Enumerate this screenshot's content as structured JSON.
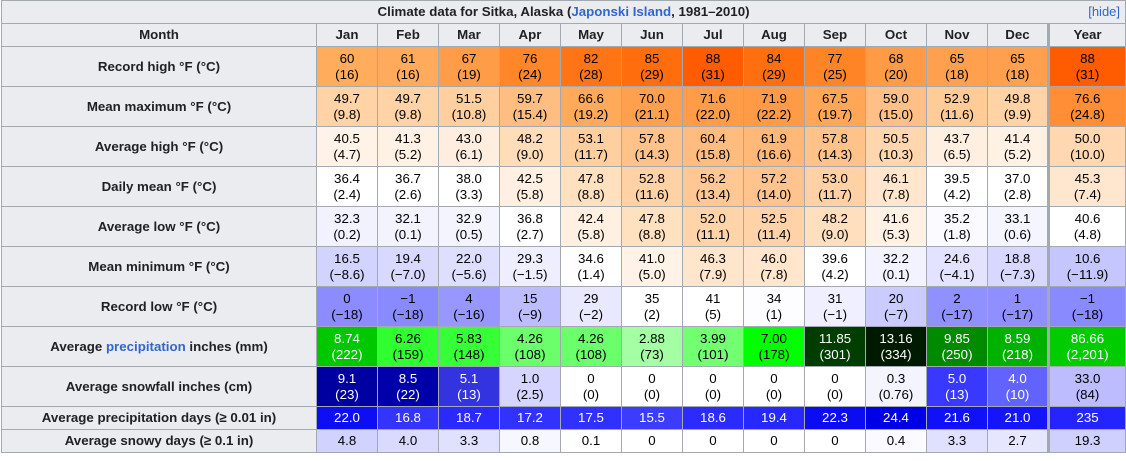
{
  "caption": {
    "prefix": "Climate data for Sitka, Alaska (",
    "link": "Japonski Island",
    "suffix": ", 1981–2010)",
    "hide_label": "[hide]"
  },
  "header": {
    "month_label": "Month",
    "months": [
      "Jan",
      "Feb",
      "Mar",
      "Apr",
      "May",
      "Jun",
      "Jul",
      "Aug",
      "Sep",
      "Oct",
      "Nov",
      "Dec",
      "Year"
    ]
  },
  "rows": [
    {
      "label": "Record high °F (°C)",
      "cells": [
        {
          "a": "60",
          "b": "(16)",
          "bg": "#ffac5c",
          "fg": "#000000"
        },
        {
          "a": "61",
          "b": "(16)",
          "bg": "#ffab5b",
          "fg": "#000000"
        },
        {
          "a": "67",
          "b": "(19)",
          "bg": "#ff9c48",
          "fg": "#000000"
        },
        {
          "a": "76",
          "b": "(24)",
          "bg": "#ff872a",
          "fg": "#000000"
        },
        {
          "a": "82",
          "b": "(28)",
          "bg": "#ff7515",
          "fg": "#000000"
        },
        {
          "a": "85",
          "b": "(29)",
          "bg": "#ff6d0d",
          "fg": "#000000"
        },
        {
          "a": "88",
          "b": "(31)",
          "bg": "#ff5b00",
          "fg": "#000000"
        },
        {
          "a": "84",
          "b": "(29)",
          "bg": "#ff6f10",
          "fg": "#000000"
        },
        {
          "a": "77",
          "b": "(25)",
          "bg": "#ff8426",
          "fg": "#000000"
        },
        {
          "a": "68",
          "b": "(20)",
          "bg": "#ff9a45",
          "fg": "#000000"
        },
        {
          "a": "65",
          "b": "(18)",
          "bg": "#ffa04f",
          "fg": "#000000"
        },
        {
          "a": "65",
          "b": "(18)",
          "bg": "#ffa04f",
          "fg": "#000000"
        },
        {
          "a": "88",
          "b": "(31)",
          "bg": "#ff5b00",
          "fg": "#000000"
        }
      ]
    },
    {
      "label": "Mean maximum °F (°C)",
      "cells": [
        {
          "a": "49.7",
          "b": "(9.8)",
          "bg": "#ffd3a6",
          "fg": "#000000"
        },
        {
          "a": "49.7",
          "b": "(9.8)",
          "bg": "#ffd3a6",
          "fg": "#000000"
        },
        {
          "a": "51.5",
          "b": "(10.8)",
          "bg": "#ffcfa0",
          "fg": "#000000"
        },
        {
          "a": "59.7",
          "b": "(15.4)",
          "bg": "#ffbe81",
          "fg": "#000000"
        },
        {
          "a": "66.6",
          "b": "(19.2)",
          "bg": "#ffaa5b",
          "fg": "#000000"
        },
        {
          "a": "70.0",
          "b": "(21.1)",
          "bg": "#ffa04f",
          "fg": "#000000"
        },
        {
          "a": "71.6",
          "b": "(22.0)",
          "bg": "#ff9c48",
          "fg": "#000000"
        },
        {
          "a": "71.9",
          "b": "(22.2)",
          "bg": "#ff9b47",
          "fg": "#000000"
        },
        {
          "a": "67.5",
          "b": "(19.7)",
          "bg": "#ffa757",
          "fg": "#000000"
        },
        {
          "a": "59.0",
          "b": "(15.0)",
          "bg": "#ffc087",
          "fg": "#000000"
        },
        {
          "a": "52.9",
          "b": "(11.6)",
          "bg": "#ffcc98",
          "fg": "#000000"
        },
        {
          "a": "49.8",
          "b": "(9.9)",
          "bg": "#ffd3a6",
          "fg": "#000000"
        },
        {
          "a": "76.6",
          "b": "(24.8)",
          "bg": "#ff8e36",
          "fg": "#000000"
        }
      ]
    },
    {
      "label": "Average high °F (°C)",
      "cells": [
        {
          "a": "40.5",
          "b": "(4.7)",
          "bg": "#fff3e7",
          "fg": "#000000"
        },
        {
          "a": "41.3",
          "b": "(5.2)",
          "bg": "#fff1e3",
          "fg": "#000000"
        },
        {
          "a": "43.0",
          "b": "(6.1)",
          "bg": "#ffede0",
          "fg": "#000000"
        },
        {
          "a": "48.2",
          "b": "(9.0)",
          "bg": "#ffddb9",
          "fg": "#000000"
        },
        {
          "a": "53.1",
          "b": "(11.7)",
          "bg": "#ffcfa0",
          "fg": "#000000"
        },
        {
          "a": "57.8",
          "b": "(14.3)",
          "bg": "#ffc389",
          "fg": "#000000"
        },
        {
          "a": "60.4",
          "b": "(15.8)",
          "bg": "#ffbc7f",
          "fg": "#000000"
        },
        {
          "a": "61.9",
          "b": "(16.6)",
          "bg": "#ffb877",
          "fg": "#000000"
        },
        {
          "a": "57.8",
          "b": "(14.3)",
          "bg": "#ffc389",
          "fg": "#000000"
        },
        {
          "a": "50.5",
          "b": "(10.3)",
          "bg": "#ffd6ae",
          "fg": "#000000"
        },
        {
          "a": "43.7",
          "b": "(6.5)",
          "bg": "#ffefe0",
          "fg": "#000000"
        },
        {
          "a": "41.4",
          "b": "(5.2)",
          "bg": "#fff1e4",
          "fg": "#000000"
        },
        {
          "a": "50.0",
          "b": "(10.0)",
          "bg": "#ffd8b1",
          "fg": "#000000"
        }
      ]
    },
    {
      "label": "Daily mean °F (°C)",
      "cells": [
        {
          "a": "36.4",
          "b": "(2.4)",
          "bg": "#ffffff",
          "fg": "#000000"
        },
        {
          "a": "36.7",
          "b": "(2.6)",
          "bg": "#ffffff",
          "fg": "#000000"
        },
        {
          "a": "38.0",
          "b": "(3.3)",
          "bg": "#ffffff",
          "fg": "#000000"
        },
        {
          "a": "42.5",
          "b": "(5.8)",
          "bg": "#fff0e1",
          "fg": "#000000"
        },
        {
          "a": "47.8",
          "b": "(8.8)",
          "bg": "#ffe0bf",
          "fg": "#000000"
        },
        {
          "a": "52.8",
          "b": "(11.6)",
          "bg": "#ffd2a6",
          "fg": "#000000"
        },
        {
          "a": "56.2",
          "b": "(13.4)",
          "bg": "#ffc794",
          "fg": "#000000"
        },
        {
          "a": "57.2",
          "b": "(14.0)",
          "bg": "#ffc48d",
          "fg": "#000000"
        },
        {
          "a": "53.0",
          "b": "(11.7)",
          "bg": "#ffd1a4",
          "fg": "#000000"
        },
        {
          "a": "46.1",
          "b": "(7.8)",
          "bg": "#ffe6cc",
          "fg": "#000000"
        },
        {
          "a": "39.5",
          "b": "(4.2)",
          "bg": "#ffffff",
          "fg": "#000000"
        },
        {
          "a": "37.0",
          "b": "(2.8)",
          "bg": "#ffffff",
          "fg": "#000000"
        },
        {
          "a": "45.3",
          "b": "(7.4)",
          "bg": "#ffe7cf",
          "fg": "#000000"
        }
      ]
    },
    {
      "label": "Average low °F (°C)",
      "cells": [
        {
          "a": "32.3",
          "b": "(0.2)",
          "bg": "#f2f2ff",
          "fg": "#000000"
        },
        {
          "a": "32.1",
          "b": "(0.1)",
          "bg": "#f3f3ff",
          "fg": "#000000"
        },
        {
          "a": "32.9",
          "b": "(0.5)",
          "bg": "#f4f4ff",
          "fg": "#000000"
        },
        {
          "a": "36.8",
          "b": "(2.7)",
          "bg": "#ffffff",
          "fg": "#000000"
        },
        {
          "a": "42.4",
          "b": "(5.8)",
          "bg": "#fff0e1",
          "fg": "#000000"
        },
        {
          "a": "47.8",
          "b": "(8.8)",
          "bg": "#ffe0bf",
          "fg": "#000000"
        },
        {
          "a": "52.0",
          "b": "(11.1)",
          "bg": "#ffd4a9",
          "fg": "#000000"
        },
        {
          "a": "52.5",
          "b": "(11.4)",
          "bg": "#ffd3a7",
          "fg": "#000000"
        },
        {
          "a": "48.2",
          "b": "(9.0)",
          "bg": "#ffdfbd",
          "fg": "#000000"
        },
        {
          "a": "41.6",
          "b": "(5.3)",
          "bg": "#fff2e4",
          "fg": "#000000"
        },
        {
          "a": "35.2",
          "b": "(1.8)",
          "bg": "#fbfbff",
          "fg": "#000000"
        },
        {
          "a": "33.1",
          "b": "(0.6)",
          "bg": "#f5f5ff",
          "fg": "#000000"
        },
        {
          "a": "40.6",
          "b": "(4.8)",
          "bg": "#ffffff",
          "fg": "#000000"
        }
      ]
    },
    {
      "label": "Mean minimum °F (°C)",
      "cells": [
        {
          "a": "16.5",
          "b": "(−8.6)",
          "bg": "#d3d3ff",
          "fg": "#000000"
        },
        {
          "a": "19.4",
          "b": "(−7.0)",
          "bg": "#d9d9ff",
          "fg": "#000000"
        },
        {
          "a": "22.0",
          "b": "(−5.6)",
          "bg": "#dedeff",
          "fg": "#000000"
        },
        {
          "a": "29.3",
          "b": "(−1.5)",
          "bg": "#eeeeff",
          "fg": "#000000"
        },
        {
          "a": "34.6",
          "b": "(1.4)",
          "bg": "#ffffff",
          "fg": "#000000"
        },
        {
          "a": "41.0",
          "b": "(5.0)",
          "bg": "#fff3e7",
          "fg": "#000000"
        },
        {
          "a": "46.3",
          "b": "(7.9)",
          "bg": "#ffe5cb",
          "fg": "#000000"
        },
        {
          "a": "46.0",
          "b": "(7.8)",
          "bg": "#ffe6cc",
          "fg": "#000000"
        },
        {
          "a": "39.6",
          "b": "(4.2)",
          "bg": "#ffffff",
          "fg": "#000000"
        },
        {
          "a": "32.2",
          "b": "(0.1)",
          "bg": "#f3f3ff",
          "fg": "#000000"
        },
        {
          "a": "24.6",
          "b": "(−4.1)",
          "bg": "#e3e3ff",
          "fg": "#000000"
        },
        {
          "a": "18.8",
          "b": "(−7.3)",
          "bg": "#d7d7ff",
          "fg": "#000000"
        },
        {
          "a": "10.6",
          "b": "(−11.9)",
          "bg": "#c6c6ff",
          "fg": "#000000"
        }
      ]
    },
    {
      "label": "Record low °F (°C)",
      "cells": [
        {
          "a": "0",
          "b": "(−18)",
          "bg": "#8c8cff",
          "fg": "#000000"
        },
        {
          "a": "−1",
          "b": "(−18)",
          "bg": "#8a8aff",
          "fg": "#000000"
        },
        {
          "a": "4",
          "b": "(−16)",
          "bg": "#9797ff",
          "fg": "#000000"
        },
        {
          "a": "15",
          "b": "(−9)",
          "bg": "#bcbcff",
          "fg": "#000000"
        },
        {
          "a": "29",
          "b": "(−2)",
          "bg": "#e8e8ff",
          "fg": "#000000"
        },
        {
          "a": "35",
          "b": "(2)",
          "bg": "#ffffff",
          "fg": "#000000"
        },
        {
          "a": "41",
          "b": "(5)",
          "bg": "#ffffff",
          "fg": "#000000"
        },
        {
          "a": "34",
          "b": "(1)",
          "bg": "#fdfdff",
          "fg": "#000000"
        },
        {
          "a": "31",
          "b": "(−1)",
          "bg": "#efefff",
          "fg": "#000000"
        },
        {
          "a": "20",
          "b": "(−7)",
          "bg": "#cbcbff",
          "fg": "#000000"
        },
        {
          "a": "2",
          "b": "(−17)",
          "bg": "#9090ff",
          "fg": "#000000"
        },
        {
          "a": "1",
          "b": "(−17)",
          "bg": "#8f8fff",
          "fg": "#000000"
        },
        {
          "a": "−1",
          "b": "(−18)",
          "bg": "#8a8aff",
          "fg": "#000000"
        }
      ]
    },
    {
      "label_prefix": "Average ",
      "label_link": "precipitation",
      "label_suffix": " inches (mm)",
      "cells": [
        {
          "a": "8.74",
          "b": "(222)",
          "bg": "#00c800",
          "fg": "#ffffff"
        },
        {
          "a": "6.26",
          "b": "(159)",
          "bg": "#2ffe2f",
          "fg": "#000000"
        },
        {
          "a": "5.83",
          "b": "(148)",
          "bg": "#37ff37",
          "fg": "#000000"
        },
        {
          "a": "4.26",
          "b": "(108)",
          "bg": "#6bff6b",
          "fg": "#000000"
        },
        {
          "a": "4.26",
          "b": "(108)",
          "bg": "#6bff6b",
          "fg": "#000000"
        },
        {
          "a": "2.88",
          "b": "(73)",
          "bg": "#a4ffa4",
          "fg": "#000000"
        },
        {
          "a": "3.99",
          "b": "(101)",
          "bg": "#72ff72",
          "fg": "#000000"
        },
        {
          "a": "7.00",
          "b": "(178)",
          "bg": "#00ff00",
          "fg": "#000000"
        },
        {
          "a": "11.85",
          "b": "(301)",
          "bg": "#003d00",
          "fg": "#ffffff"
        },
        {
          "a": "13.16",
          "b": "(334)",
          "bg": "#001a00",
          "fg": "#ffffff"
        },
        {
          "a": "9.85",
          "b": "(250)",
          "bg": "#008a00",
          "fg": "#ffffff"
        },
        {
          "a": "8.59",
          "b": "(218)",
          "bg": "#00b100",
          "fg": "#ffffff"
        },
        {
          "a": "86.66",
          "b": "(2,201)",
          "bg": "#00cc00",
          "fg": "#ffffff"
        }
      ]
    },
    {
      "label": "Average snowfall inches (cm)",
      "cells": [
        {
          "a": "9.1",
          "b": "(23)",
          "bg": "#0000a0",
          "fg": "#ffffff"
        },
        {
          "a": "8.5",
          "b": "(22)",
          "bg": "#0000aa",
          "fg": "#ffffff"
        },
        {
          "a": "5.1",
          "b": "(13)",
          "bg": "#3333e0",
          "fg": "#ffffff"
        },
        {
          "a": "1.0",
          "b": "(2.5)",
          "bg": "#d5d5ff",
          "fg": "#000000"
        },
        {
          "a": "0",
          "b": "(0)",
          "bg": "#ffffff",
          "fg": "#000000"
        },
        {
          "a": "0",
          "b": "(0)",
          "bg": "#ffffff",
          "fg": "#000000"
        },
        {
          "a": "0",
          "b": "(0)",
          "bg": "#ffffff",
          "fg": "#000000"
        },
        {
          "a": "0",
          "b": "(0)",
          "bg": "#ffffff",
          "fg": "#000000"
        },
        {
          "a": "0",
          "b": "(0)",
          "bg": "#ffffff",
          "fg": "#000000"
        },
        {
          "a": "0.3",
          "b": "(0.76)",
          "bg": "#f4f4ff",
          "fg": "#000000"
        },
        {
          "a": "5.0",
          "b": "(13)",
          "bg": "#3838ff",
          "fg": "#ffffff"
        },
        {
          "a": "4.0",
          "b": "(10)",
          "bg": "#6262ff",
          "fg": "#ffffff"
        },
        {
          "a": "33.0",
          "b": "(84)",
          "bg": "#bcbcff",
          "fg": "#000000"
        }
      ]
    },
    {
      "label": "Average precipitation days (≥ 0.01 in)",
      "single": true,
      "cells": [
        {
          "a": "22.0",
          "bg": "#0e0ef5",
          "fg": "#ffffff"
        },
        {
          "a": "16.8",
          "bg": "#3434ff",
          "fg": "#ffffff"
        },
        {
          "a": "18.7",
          "bg": "#2a2aff",
          "fg": "#ffffff"
        },
        {
          "a": "17.2",
          "bg": "#3232ff",
          "fg": "#ffffff"
        },
        {
          "a": "17.5",
          "bg": "#3030ff",
          "fg": "#ffffff"
        },
        {
          "a": "15.5",
          "bg": "#3c3cff",
          "fg": "#ffffff"
        },
        {
          "a": "18.6",
          "bg": "#2b2bff",
          "fg": "#ffffff"
        },
        {
          "a": "19.4",
          "bg": "#2727ff",
          "fg": "#ffffff"
        },
        {
          "a": "22.3",
          "bg": "#0c0cf3",
          "fg": "#ffffff"
        },
        {
          "a": "24.4",
          "bg": "#0000e6",
          "fg": "#ffffff"
        },
        {
          "a": "21.6",
          "bg": "#1111f8",
          "fg": "#ffffff"
        },
        {
          "a": "21.0",
          "bg": "#1515fc",
          "fg": "#ffffff"
        },
        {
          "a": "235",
          "bg": "#2424ff",
          "fg": "#ffffff"
        }
      ]
    },
    {
      "label": "Average snowy days (≥ 0.1 in)",
      "single": true,
      "cells": [
        {
          "a": "4.8",
          "bg": "#d2d2ff",
          "fg": "#000000"
        },
        {
          "a": "4.0",
          "bg": "#dadaff",
          "fg": "#000000"
        },
        {
          "a": "3.3",
          "bg": "#e0e0ff",
          "fg": "#000000"
        },
        {
          "a": "0.8",
          "bg": "#f7f7ff",
          "fg": "#000000"
        },
        {
          "a": "0.1",
          "bg": "#ffffff",
          "fg": "#000000"
        },
        {
          "a": "0",
          "bg": "#ffffff",
          "fg": "#000000"
        },
        {
          "a": "0",
          "bg": "#ffffff",
          "fg": "#000000"
        },
        {
          "a": "0",
          "bg": "#ffffff",
          "fg": "#000000"
        },
        {
          "a": "0",
          "bg": "#ffffff",
          "fg": "#000000"
        },
        {
          "a": "0.4",
          "bg": "#fbfbff",
          "fg": "#000000"
        },
        {
          "a": "3.3",
          "bg": "#e0e0ff",
          "fg": "#000000"
        },
        {
          "a": "2.7",
          "bg": "#e6e6ff",
          "fg": "#000000"
        },
        {
          "a": "19.3",
          "bg": "#d0d0ff",
          "fg": "#000000"
        }
      ]
    }
  ]
}
